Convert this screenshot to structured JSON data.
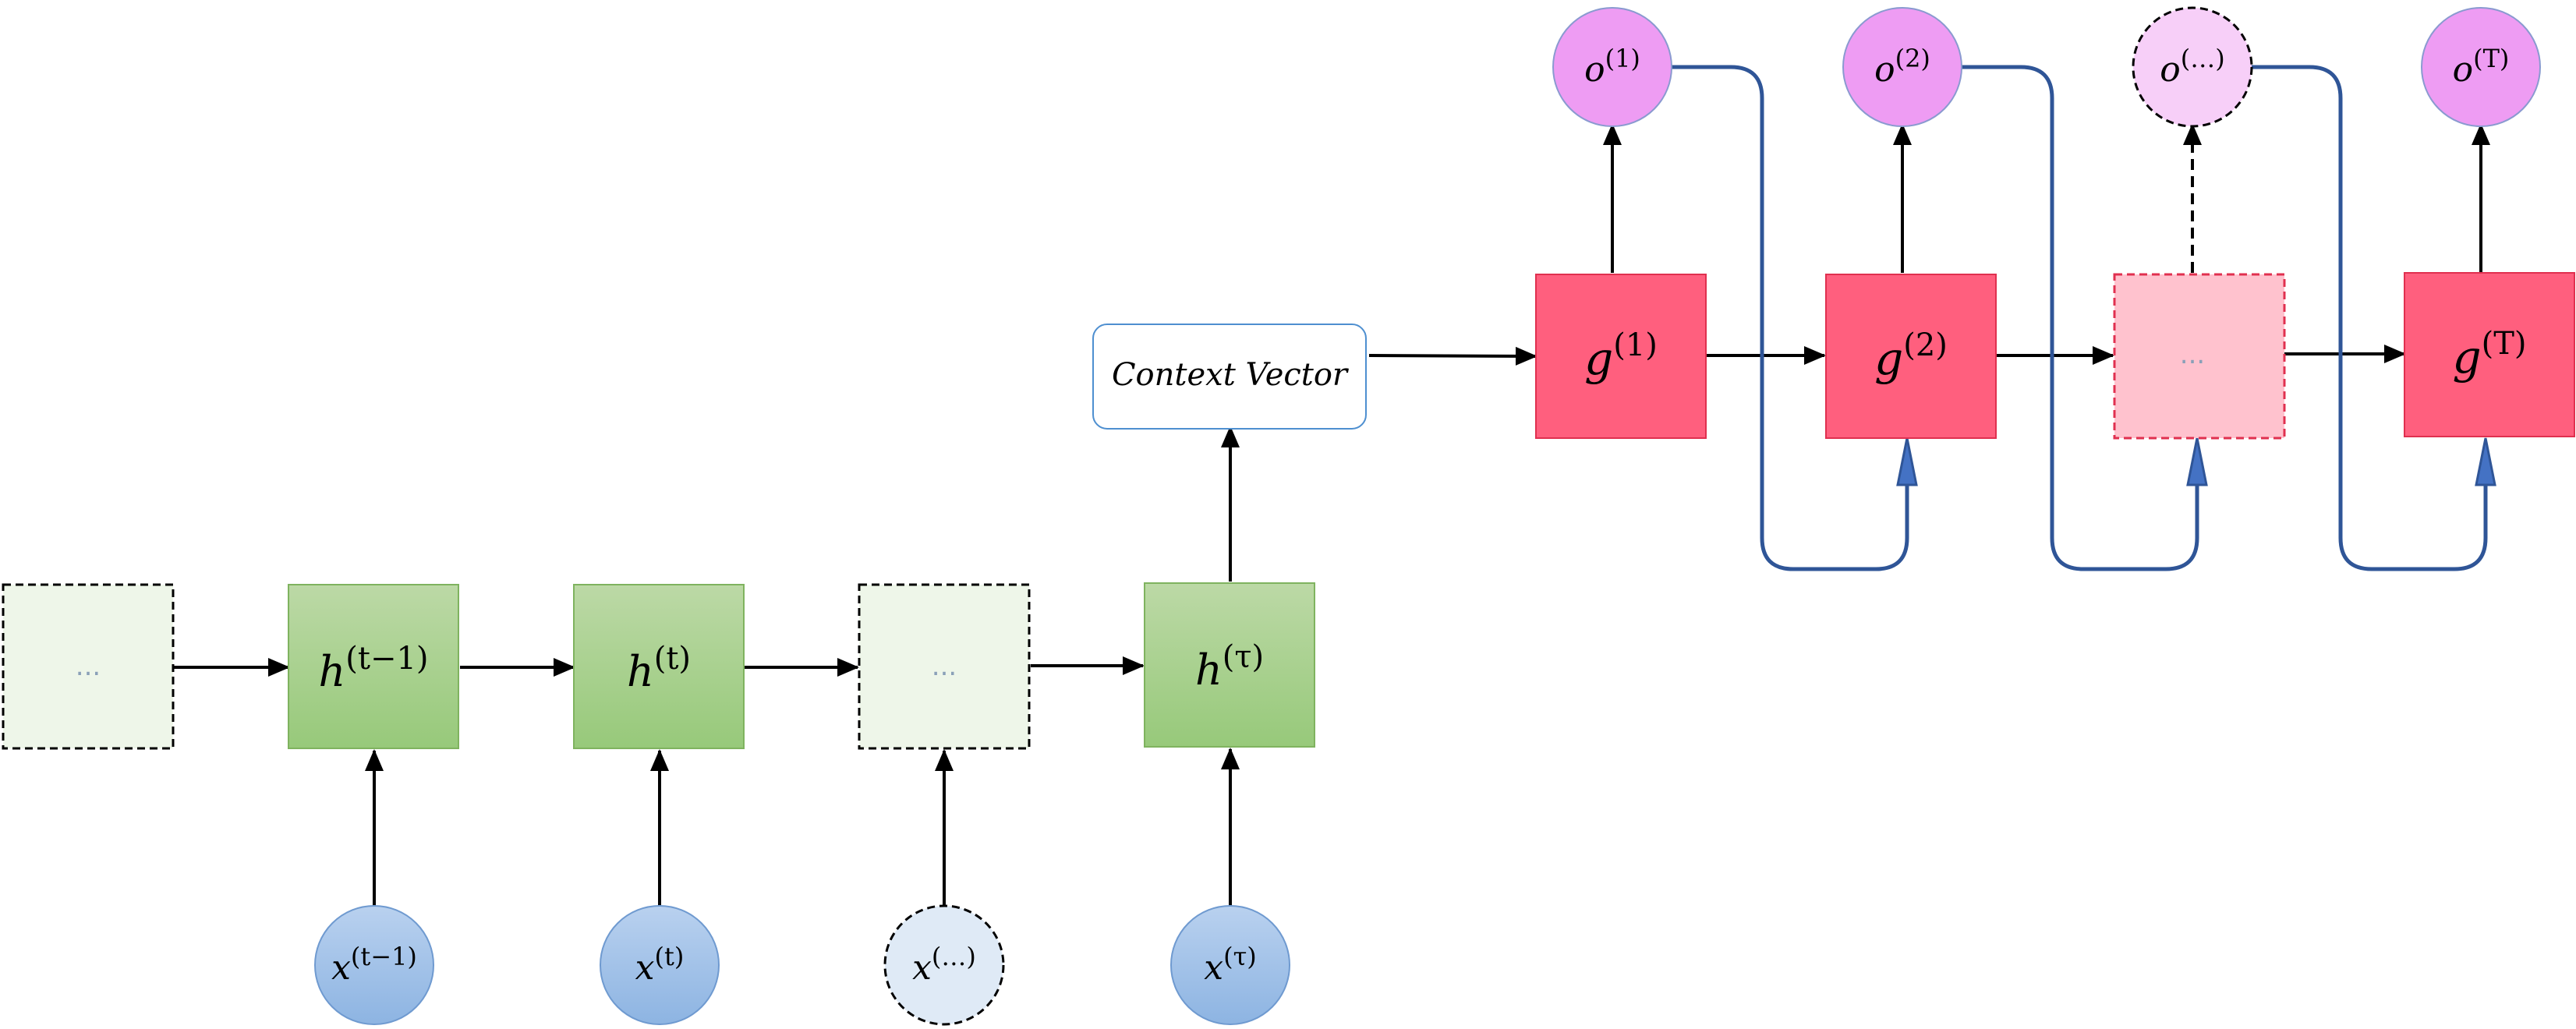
{
  "encoder": {
    "hidden": [
      {
        "base": "",
        "sup": "",
        "ellipsis": "...",
        "dashed": true
      },
      {
        "base": "h",
        "sup": "(t−1)",
        "ellipsis": "",
        "dashed": false
      },
      {
        "base": "h",
        "sup": "(t)",
        "ellipsis": "",
        "dashed": false
      },
      {
        "base": "",
        "sup": "",
        "ellipsis": "...",
        "dashed": true
      },
      {
        "base": "h",
        "sup": "(τ)",
        "ellipsis": "",
        "dashed": false
      }
    ],
    "inputs": [
      {
        "base": "x",
        "sup": "(t−1)",
        "dashed": false
      },
      {
        "base": "x",
        "sup": "(t)",
        "dashed": false
      },
      {
        "base": "x",
        "sup": "(…)",
        "dashed": true
      },
      {
        "base": "x",
        "sup": "(τ)",
        "dashed": false
      }
    ]
  },
  "context": {
    "label": "Context Vector"
  },
  "decoder": {
    "cells": [
      {
        "base": "g",
        "sup": "(1)",
        "ellipsis": "",
        "dashed": false
      },
      {
        "base": "g",
        "sup": "(2)",
        "ellipsis": "",
        "dashed": false
      },
      {
        "base": "",
        "sup": "",
        "ellipsis": "...",
        "dashed": true
      },
      {
        "base": "g",
        "sup": "(T)",
        "ellipsis": "",
        "dashed": false
      }
    ],
    "outputs": [
      {
        "base": "o",
        "sup": "(1)",
        "dashed": false
      },
      {
        "base": "o",
        "sup": "(2)",
        "dashed": false
      },
      {
        "base": "o",
        "sup": "(…)",
        "dashed": true
      },
      {
        "base": "o",
        "sup": "(T)",
        "dashed": false
      }
    ]
  },
  "colors": {
    "encoder_fill_top": "#bcd9a6",
    "encoder_fill_bottom": "#97c97a",
    "encoder_stroke": "#7fb35f",
    "encoder_placeholder_fill": "#eef6e9",
    "input_fill_top": "#b9d1ef",
    "input_fill_bottom": "#8db4e2",
    "input_stroke": "#6f9ad0",
    "input_placeholder_fill": "#dfeaf6",
    "decoder_fill": "#ff5f7e",
    "decoder_stroke": "#e0304f",
    "decoder_placeholder_fill": "#ffc2ce",
    "output_fill": "#ee9cf3",
    "output_stroke": "#8a9ad0",
    "output_placeholder_fill": "#f7cff8",
    "feedback_line": "#2f5597",
    "arrow": "#000000",
    "context_stroke": "#4e8fd0"
  }
}
